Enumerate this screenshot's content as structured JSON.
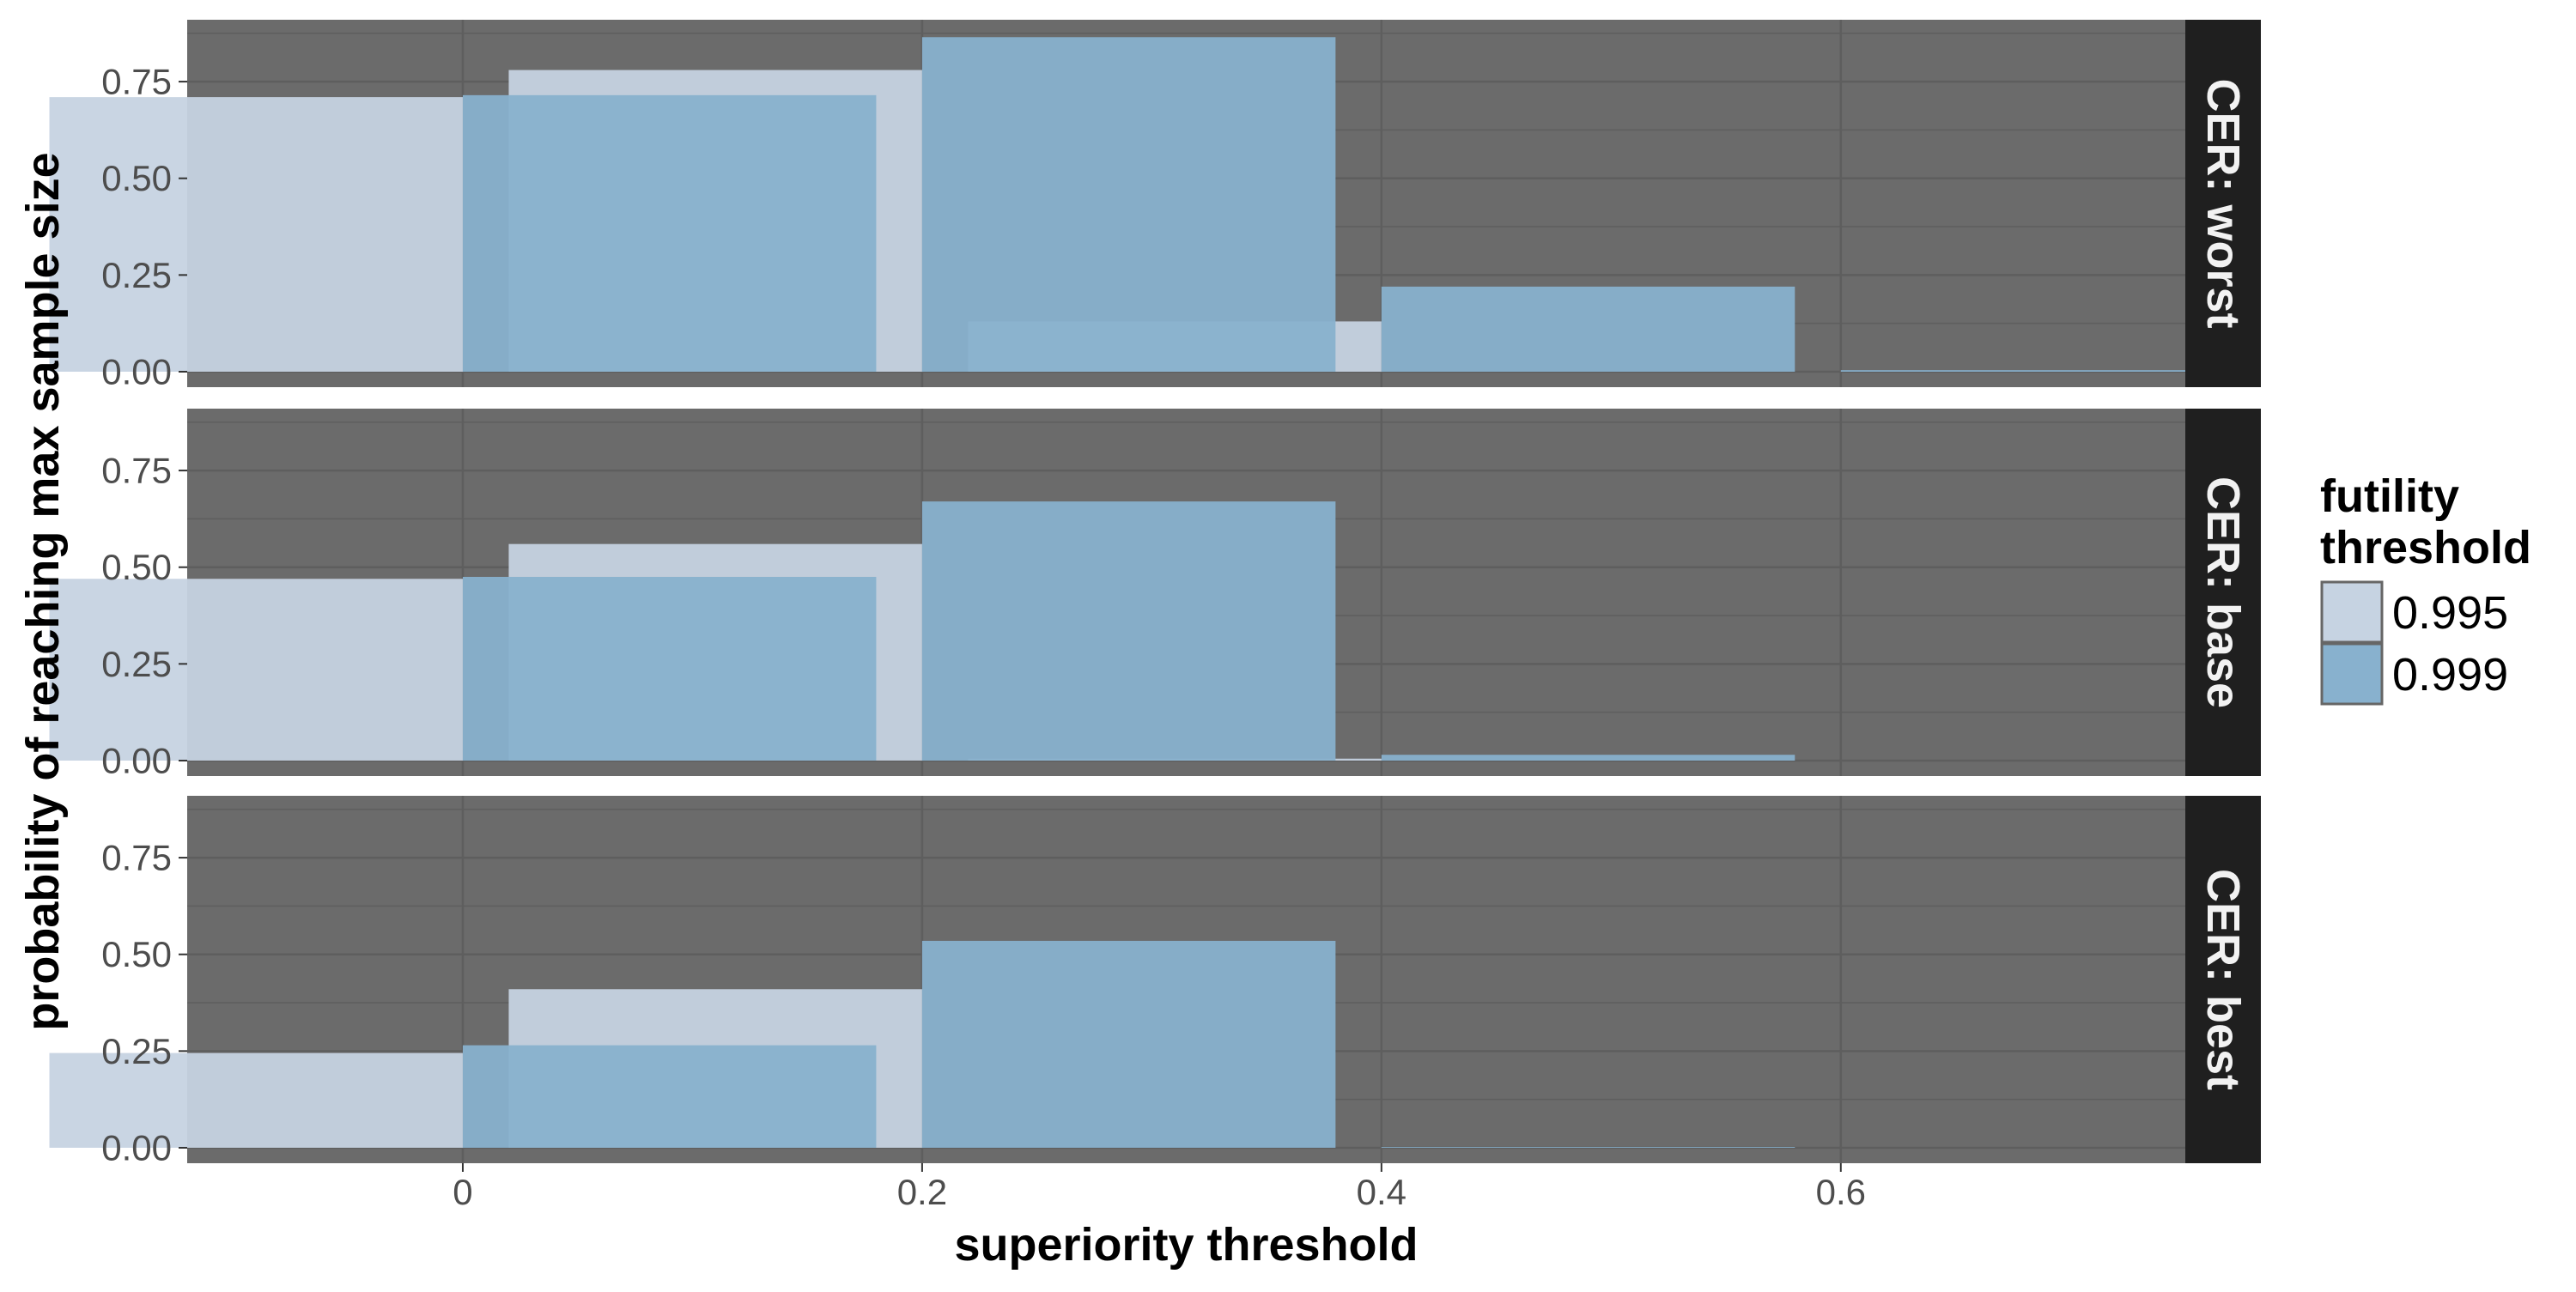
{
  "chart_data": {
    "type": "bar",
    "xlabel": "superiority threshold",
    "ylabel": "probability of reaching max sample size",
    "x_ticks": [
      "0",
      "0.2",
      "0.4",
      "0.6"
    ],
    "y_ticks": [
      "0.00",
      "0.25",
      "0.50",
      "0.75"
    ],
    "xlim": [
      -0.12,
      0.75
    ],
    "ylim": [
      -0.04,
      0.91
    ],
    "grid": true,
    "legend": {
      "title": [
        "futility",
        "threshold"
      ],
      "placement": "right",
      "entries": [
        {
          "label": "0.995",
          "color": "#c6d3e2"
        },
        {
          "label": "0.999",
          "color": "#88b1ce"
        }
      ]
    },
    "colors": {
      "panel_background": "#6b6b6b",
      "strip_background": "#1f1f1f",
      "gridline": "#5e5e5e"
    },
    "x": [
      0,
      0.2,
      0.4,
      0.6
    ],
    "panels": [
      {
        "strip": "CER: worst",
        "series": [
          {
            "name": "0.995",
            "values": [
              0.71,
              0.78,
              0.13,
              0.0
            ]
          },
          {
            "name": "0.999",
            "values": [
              0.715,
              0.865,
              0.22,
              0.004
            ]
          }
        ]
      },
      {
        "strip": "CER: base",
        "series": [
          {
            "name": "0.995",
            "values": [
              0.47,
              0.56,
              0.005,
              0.0
            ]
          },
          {
            "name": "0.999",
            "values": [
              0.475,
              0.67,
              0.015,
              0.0
            ]
          }
        ]
      },
      {
        "strip": "CER: best",
        "series": [
          {
            "name": "0.995",
            "values": [
              0.245,
              0.41,
              0.0,
              0.0
            ]
          },
          {
            "name": "0.999",
            "values": [
              0.265,
              0.535,
              0.002,
              0.0
            ]
          }
        ]
      }
    ]
  }
}
